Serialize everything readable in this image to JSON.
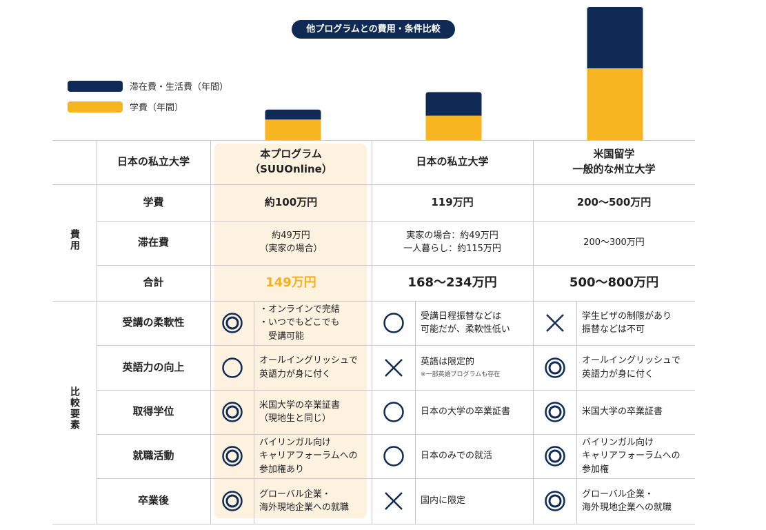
{
  "title": "他プログラムとの費用・条件比較",
  "colors": {
    "navy": "#0e2a55",
    "gold": "#f7b521",
    "highlight": "#fdf1e0",
    "orange_text": "#f5b01c"
  },
  "chart_data": {
    "type": "bar",
    "stacked": true,
    "categories": [
      "本プログラム（SUUOnline）",
      "日本の私立大学",
      "米国留学 一般的な州立大学"
    ],
    "series": [
      {
        "name": "学費（年間）",
        "color": "#f7b521",
        "values": [
          100,
          119,
          350
        ]
      },
      {
        "name": "滞在費・生活費（年間）",
        "color": "#0e2a55",
        "values": [
          49,
          115,
          300
        ]
      }
    ],
    "legend": [
      "滞在費・生活費（年間）",
      "学費（年間）"
    ],
    "legend_position": "top-left",
    "grid": false
  },
  "table": {
    "header": [
      "日本の私立大学",
      "本プログラム\n（SUUOnline）",
      "日本の私立大学",
      "米国留学\n一般的な州立大学"
    ],
    "cost_group": "費用",
    "compare_group": "比較要素",
    "cost_rows": [
      {
        "label": "学費",
        "values": [
          "約100万円",
          "119万円",
          "200〜500万円"
        ]
      },
      {
        "label": "滞在費",
        "values": [
          "約49万円\n（実家の場合）",
          "実家の場合：約49万円\n一人暮らし：約115万円",
          "200〜300万円"
        ]
      },
      {
        "label": "合計",
        "values": [
          "149万円",
          "168〜234万円",
          "500〜800万円"
        ]
      }
    ],
    "compare_rows": [
      {
        "label": "受講の柔軟性",
        "cells": [
          {
            "symbol": "double-circle",
            "text": "・オンラインで完結\n・いつでもどこでも\n　受講可能"
          },
          {
            "symbol": "circle",
            "text": "受講日程振替などは\n可能だが、柔軟性低い"
          },
          {
            "symbol": "cross",
            "text": "学生ビザの制限があり\n振替などは不可"
          }
        ]
      },
      {
        "label": "英語力の向上",
        "cells": [
          {
            "symbol": "circle",
            "text": "オールイングリッシュで\n英語力が身に付く"
          },
          {
            "symbol": "cross",
            "text": "英語は限定的",
            "note": "※一部英語プログラムも存在"
          },
          {
            "symbol": "double-circle",
            "text": "オールイングリッシュで\n英語力が身に付く"
          }
        ]
      },
      {
        "label": "取得学位",
        "cells": [
          {
            "symbol": "double-circle",
            "text": "米国大学の卒業証書\n（現地生と同じ）"
          },
          {
            "symbol": "circle",
            "text": "日本の大学の卒業証書"
          },
          {
            "symbol": "double-circle",
            "text": "米国大学の卒業証書"
          }
        ]
      },
      {
        "label": "就職活動",
        "cells": [
          {
            "symbol": "double-circle",
            "text": "バイリンガル向け\nキャリアフォーラムへの\n参加権あり"
          },
          {
            "symbol": "circle",
            "text": "日本のみでの就活"
          },
          {
            "symbol": "double-circle",
            "text": "バイリンガル向け\nキャリアフォーラムへの\n参加権"
          }
        ]
      },
      {
        "label": "卒業後",
        "cells": [
          {
            "symbol": "double-circle",
            "text": "グローバル企業・\n海外現地企業への就職"
          },
          {
            "symbol": "cross",
            "text": "国内に限定"
          },
          {
            "symbol": "double-circle",
            "text": "グローバル企業・\n海外現地企業への就職"
          }
        ]
      }
    ]
  }
}
